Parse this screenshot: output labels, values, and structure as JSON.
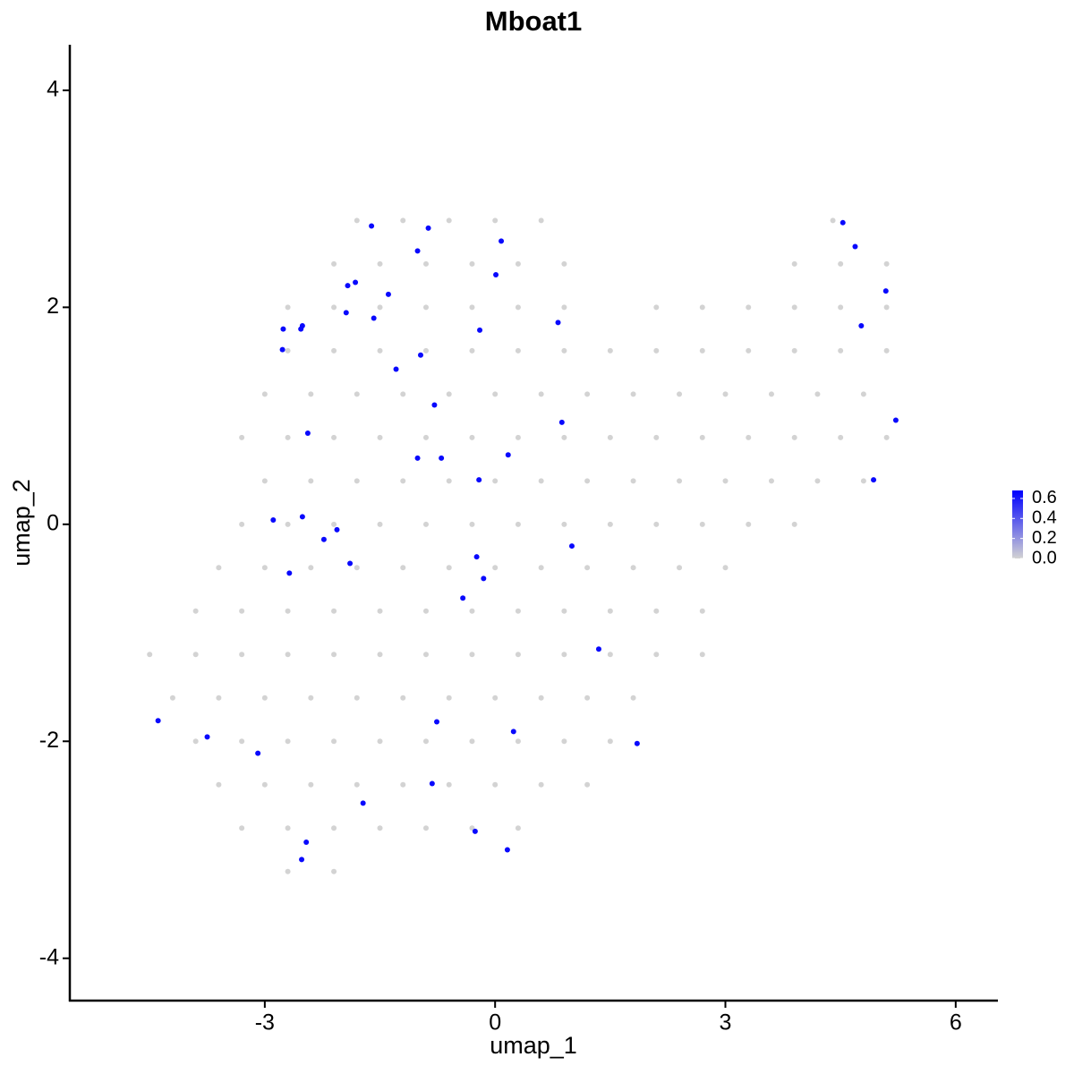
{
  "chart_data": {
    "type": "scatter",
    "title": "Mboat1",
    "xlabel": "umap_1",
    "ylabel": "umap_2",
    "xlim": [
      -5.54,
      6.55
    ],
    "ylim": [
      -4.39,
      4.42
    ],
    "xticks": [
      -3,
      0,
      3,
      6
    ],
    "yticks": [
      -4,
      -2,
      0,
      2,
      4
    ],
    "x": [
      -1.8,
      -1.2,
      -0.6,
      0,
      0.6,
      4.4,
      -2.1,
      -1.5,
      -0.9,
      -0.3,
      0.3,
      0.9,
      3.9,
      4.5,
      5.1,
      -2.7,
      -2.1,
      -1.5,
      -0.9,
      -0.3,
      0.3,
      0.9,
      2.1,
      2.7,
      3.3,
      3.9,
      4.5,
      5.1,
      -2.7,
      -2.1,
      -1.5,
      -0.9,
      -0.3,
      0.3,
      0.9,
      1.5,
      2.1,
      2.7,
      3.3,
      3.9,
      4.5,
      5.1,
      -3.0,
      -2.4,
      -1.8,
      -1.2,
      -0.6,
      0,
      0.6,
      1.2,
      1.8,
      2.4,
      3.0,
      3.6,
      4.2,
      4.8,
      -3.3,
      -2.7,
      -2.1,
      -1.5,
      -0.9,
      -0.3,
      0.3,
      0.9,
      1.5,
      2.1,
      2.7,
      3.3,
      3.9,
      4.5,
      5.1,
      -3.0,
      -2.4,
      -1.8,
      -1.2,
      -0.6,
      0,
      0.6,
      1.2,
      1.8,
      2.4,
      3.0,
      3.6,
      4.2,
      4.8,
      -3.3,
      -2.7,
      -2.1,
      -1.5,
      -0.9,
      -0.3,
      0.3,
      0.9,
      1.5,
      2.1,
      2.7,
      3.3,
      3.9,
      -3.6,
      -3.0,
      -2.4,
      -1.8,
      -1.2,
      -0.6,
      0,
      0.6,
      1.2,
      1.8,
      2.4,
      3.0,
      -3.9,
      -3.3,
      -2.7,
      -2.1,
      -1.5,
      -0.9,
      -0.3,
      0.3,
      0.9,
      1.5,
      2.1,
      2.7,
      -4.5,
      -3.9,
      -3.3,
      -2.7,
      -2.1,
      -1.5,
      -0.9,
      -0.3,
      0.3,
      0.9,
      1.5,
      2.1,
      2.7,
      -4.2,
      -3.6,
      -3.0,
      -2.4,
      -1.8,
      -1.2,
      -0.6,
      0,
      0.6,
      1.2,
      1.8,
      -3.9,
      -3.3,
      -2.7,
      -2.1,
      -1.5,
      -0.9,
      -0.3,
      0.3,
      0.9,
      1.5,
      -3.6,
      -3.0,
      -2.4,
      -1.8,
      -1.2,
      -0.6,
      0,
      0.6,
      1.2,
      -3.3,
      -2.7,
      -2.1,
      -1.5,
      -0.9,
      -0.3,
      0.3,
      -2.7,
      -2.1,
      -1.61,
      -0.87,
      0.08,
      -1.01,
      0.01,
      -1.92,
      -1.82,
      -1.39,
      -1.94,
      -1.58,
      -2.76,
      -2.51,
      -2.53,
      -0.2,
      0.82,
      -2.77,
      -0.97,
      -1.29,
      -0.79,
      0.87,
      -2.44,
      -1.01,
      -0.7,
      0.17,
      -0.21,
      -2.89,
      -2.51,
      -2.06,
      -2.23,
      -1.89,
      -2.68,
      -0.24,
      -0.15,
      -0.42,
      1.0,
      1.35,
      -4.39,
      -3.75,
      -3.09,
      -0.76,
      0.24,
      1.85,
      -0.82,
      -1.72,
      -2.46,
      -2.52,
      -0.26,
      0.16,
      4.53,
      4.69,
      5.09,
      4.77,
      5.22,
      4.93
    ],
    "y": [
      2.8,
      2.8,
      2.8,
      2.8,
      2.8,
      2.8,
      2.4,
      2.4,
      2.4,
      2.4,
      2.4,
      2.4,
      2.4,
      2.4,
      2.4,
      2.0,
      2.0,
      2.0,
      2.0,
      2.0,
      2.0,
      2.0,
      2.0,
      2.0,
      2.0,
      2.0,
      2.0,
      2.0,
      1.6,
      1.6,
      1.6,
      1.6,
      1.6,
      1.6,
      1.6,
      1.6,
      1.6,
      1.6,
      1.6,
      1.6,
      1.6,
      1.6,
      1.2,
      1.2,
      1.2,
      1.2,
      1.2,
      1.2,
      1.2,
      1.2,
      1.2,
      1.2,
      1.2,
      1.2,
      1.2,
      1.2,
      0.8,
      0.8,
      0.8,
      0.8,
      0.8,
      0.8,
      0.8,
      0.8,
      0.8,
      0.8,
      0.8,
      0.8,
      0.8,
      0.8,
      0.8,
      0.4,
      0.4,
      0.4,
      0.4,
      0.4,
      0.4,
      0.4,
      0.4,
      0.4,
      0.4,
      0.4,
      0.4,
      0.4,
      0.4,
      0,
      0,
      0,
      0,
      0,
      0,
      0,
      0,
      0,
      0,
      0,
      0,
      0,
      -0.4,
      -0.4,
      -0.4,
      -0.4,
      -0.4,
      -0.4,
      -0.4,
      -0.4,
      -0.4,
      -0.4,
      -0.4,
      -0.4,
      -0.8,
      -0.8,
      -0.8,
      -0.8,
      -0.8,
      -0.8,
      -0.8,
      -0.8,
      -0.8,
      -0.8,
      -0.8,
      -0.8,
      -1.2,
      -1.2,
      -1.2,
      -1.2,
      -1.2,
      -1.2,
      -1.2,
      -1.2,
      -1.2,
      -1.2,
      -1.2,
      -1.2,
      -1.2,
      -1.6,
      -1.6,
      -1.6,
      -1.6,
      -1.6,
      -1.6,
      -1.6,
      -1.6,
      -1.6,
      -1.6,
      -1.6,
      -2.0,
      -2.0,
      -2.0,
      -2.0,
      -2.0,
      -2.0,
      -2.0,
      -2.0,
      -2.0,
      -2.0,
      -2.4,
      -2.4,
      -2.4,
      -2.4,
      -2.4,
      -2.4,
      -2.4,
      -2.4,
      -2.4,
      -2.8,
      -2.8,
      -2.8,
      -2.8,
      -2.8,
      -2.8,
      -2.8,
      -3.2,
      -3.2,
      2.75,
      2.73,
      2.61,
      2.52,
      2.3,
      2.2,
      2.23,
      2.12,
      1.95,
      1.9,
      1.8,
      1.83,
      1.8,
      1.79,
      1.86,
      1.61,
      1.56,
      1.43,
      1.1,
      0.94,
      0.84,
      0.61,
      0.61,
      0.64,
      0.41,
      0.04,
      0.07,
      -0.05,
      -0.14,
      -0.36,
      -0.45,
      -0.3,
      -0.5,
      -0.68,
      -0.2,
      -1.15,
      -1.81,
      -1.96,
      -2.11,
      -1.82,
      -1.91,
      -2.02,
      -2.39,
      -2.57,
      -2.93,
      -3.09,
      -2.83,
      -3.0,
      2.78,
      2.56,
      2.15,
      1.83,
      0.96,
      0.41
    ],
    "values": [
      0,
      0,
      0,
      0,
      0,
      0,
      0,
      0,
      0,
      0,
      0,
      0,
      0,
      0,
      0,
      0,
      0,
      0,
      0,
      0,
      0,
      0,
      0,
      0,
      0,
      0,
      0,
      0,
      0,
      0,
      0,
      0,
      0,
      0,
      0,
      0,
      0,
      0,
      0,
      0,
      0,
      0,
      0,
      0,
      0,
      0,
      0,
      0,
      0,
      0,
      0,
      0,
      0,
      0,
      0,
      0,
      0,
      0,
      0,
      0,
      0,
      0,
      0,
      0,
      0,
      0,
      0,
      0,
      0,
      0,
      0,
      0,
      0,
      0,
      0,
      0,
      0,
      0,
      0,
      0,
      0,
      0,
      0,
      0,
      0,
      0,
      0,
      0,
      0,
      0,
      0,
      0,
      0,
      0,
      0,
      0,
      0,
      0,
      0,
      0,
      0,
      0,
      0,
      0,
      0,
      0,
      0,
      0,
      0,
      0,
      0,
      0,
      0,
      0,
      0,
      0,
      0,
      0,
      0,
      0,
      0,
      0,
      0,
      0,
      0,
      0,
      0,
      0,
      0,
      0,
      0,
      0,
      0,
      0,
      0,
      0,
      0,
      0,
      0,
      0,
      0,
      0,
      0,
      0,
      0,
      0,
      0,
      0,
      0,
      0,
      0,
      0,
      0,
      0,
      0,
      0,
      0,
      0,
      0,
      0,
      0,
      0,
      0,
      0,
      0,
      0,
      0,
      0,
      0,
      0,
      0,
      0,
      0,
      0,
      0.65,
      0.65,
      0.65,
      0.65,
      0.65,
      0.65,
      0.65,
      0.65,
      0.65,
      0.65,
      0.65,
      0.65,
      0.65,
      0.65,
      0.65,
      0.65,
      0.65,
      0.65,
      0.65,
      0.65,
      0.65,
      0.65,
      0.65,
      0.65,
      0.65,
      0.65,
      0.65,
      0.65,
      0.65,
      0.65,
      0.65,
      0.65,
      0.65,
      0.65,
      0.65,
      0.65,
      0.65,
      0.65,
      0.65,
      0.65,
      0.65,
      0.65,
      0.65,
      0.65,
      0.65,
      0.65,
      0.65,
      0.65,
      0.65,
      0.65,
      0.65,
      0.65,
      0.65,
      0.65
    ],
    "colorbar": {
      "low": "#d3d3d3",
      "high": "#0000ff",
      "lim": [
        0,
        0.68
      ],
      "ticks": [
        {
          "value": 0,
          "label": "0.0"
        },
        0.2,
        0.4,
        0.6
      ]
    }
  }
}
